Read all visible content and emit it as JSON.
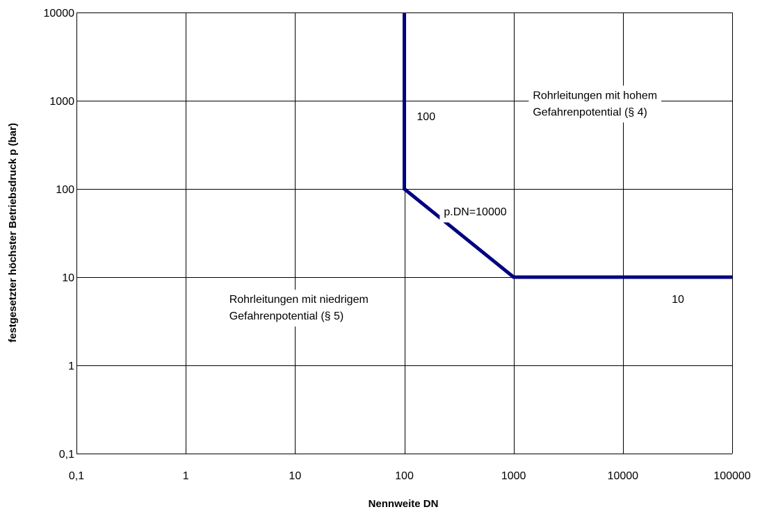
{
  "chart_data": {
    "type": "line",
    "title": "",
    "xlabel": "Nennweite DN",
    "ylabel": "festgesetzter höchster Betriebsdruck p (bar)",
    "x_scale": "log",
    "y_scale": "log",
    "xlim": [
      0.1,
      100000
    ],
    "ylim": [
      0.1,
      10000
    ],
    "grid": true,
    "x_ticks": [
      0.1,
      1,
      10,
      100,
      1000,
      10000,
      100000
    ],
    "x_tick_labels": [
      "0,1",
      "1",
      "10",
      "100",
      "1000",
      "10000",
      "100000"
    ],
    "y_ticks": [
      0.1,
      1,
      10,
      100,
      1000,
      10000
    ],
    "y_tick_labels": [
      "0,1",
      "1",
      "10",
      "100",
      "1000",
      "10000"
    ],
    "line_color": "#000080",
    "series": [
      {
        "x": [
          100,
          100,
          1000,
          100000
        ],
        "y": [
          10000,
          100,
          10,
          10
        ]
      }
    ],
    "annotations": [
      {
        "lines": [
          "100"
        ],
        "x": 130,
        "y": 600
      },
      {
        "lines": [
          "p.DN=10000"
        ],
        "x": 230,
        "y": 50
      },
      {
        "lines": [
          "10"
        ],
        "x": 28000,
        "y": 5.1
      },
      {
        "lines": [
          "Rohrleitungen mit hohem",
          "Gefahrenpotential (§ 4)"
        ],
        "x": 1500,
        "y": 1050
      },
      {
        "lines": [
          "Rohrleitungen mit niedrigem",
          "Gefahrenpotential (§ 5)"
        ],
        "x": 2.5,
        "y": 5.1
      }
    ]
  }
}
